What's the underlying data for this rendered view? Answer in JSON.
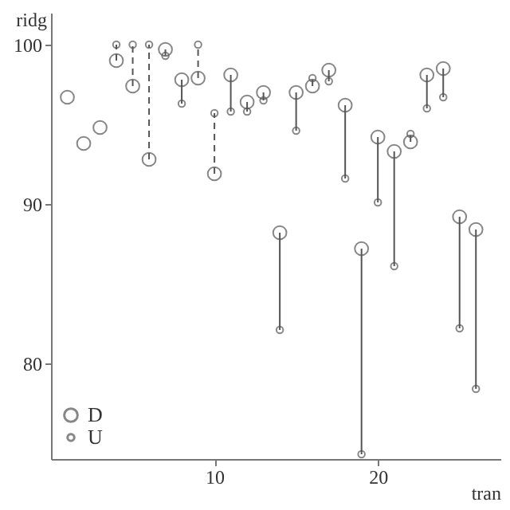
{
  "chart_data": {
    "type": "scatter",
    "xlabel": "tran",
    "ylabel": "ridg",
    "x": [
      1,
      2,
      3,
      4,
      5,
      6,
      7,
      8,
      9,
      10,
      11,
      12,
      13,
      14,
      15,
      16,
      17,
      18,
      19,
      20,
      21,
      22,
      23,
      24,
      25,
      26
    ],
    "series": [
      {
        "name": "D",
        "color": "#555555",
        "values": [
          96.7,
          93.8,
          94.8,
          99.0,
          97.4,
          92.8,
          99.7,
          97.8,
          97.9,
          91.9,
          98.1,
          96.4,
          97.0,
          88.2,
          97.0,
          97.4,
          98.4,
          96.2,
          87.2,
          94.2,
          93.3,
          93.9,
          98.1,
          98.5,
          89.2,
          88.4
        ],
        "errors": [
          null,
          null,
          null,
          [
            99.0,
            100
          ],
          [
            97.4,
            100
          ],
          [
            92.8,
            100
          ],
          [
            99.3,
            99.7
          ],
          [
            96.3,
            97.8
          ],
          [
            97.9,
            100
          ],
          [
            91.9,
            95.7
          ],
          [
            95.8,
            98.1
          ],
          [
            95.8,
            96.4
          ],
          [
            96.5,
            97.0
          ],
          [
            82.1,
            88.2
          ],
          [
            94.6,
            97.0
          ],
          [
            97.4,
            97.9
          ],
          [
            97.7,
            98.4
          ],
          [
            91.6,
            96.2
          ],
          [
            74.3,
            87.2
          ],
          [
            90.1,
            94.2
          ],
          [
            86.1,
            93.3
          ],
          [
            93.9,
            94.4
          ],
          [
            96.0,
            98.1
          ],
          [
            96.7,
            98.5
          ],
          [
            82.2,
            89.2
          ],
          [
            78.4,
            88.4
          ]
        ]
      },
      {
        "name": "U",
        "color": "#555555",
        "values": [
          null,
          null,
          null,
          100,
          100,
          100,
          99.3,
          96.3,
          100,
          95.7,
          95.8,
          95.8,
          96.5,
          82.1,
          94.6,
          97.9,
          97.7,
          91.6,
          74.3,
          90.1,
          86.1,
          94.4,
          96.0,
          96.7,
          82.2,
          78.4
        ]
      }
    ],
    "marker": "circle",
    "xlim": [
      0,
      27.5
    ],
    "xticks": [
      10,
      20
    ],
    "ylim": [
      74,
      102
    ],
    "yticks": [
      80,
      90,
      100
    ],
    "grid": false,
    "legend": "bottom left"
  }
}
